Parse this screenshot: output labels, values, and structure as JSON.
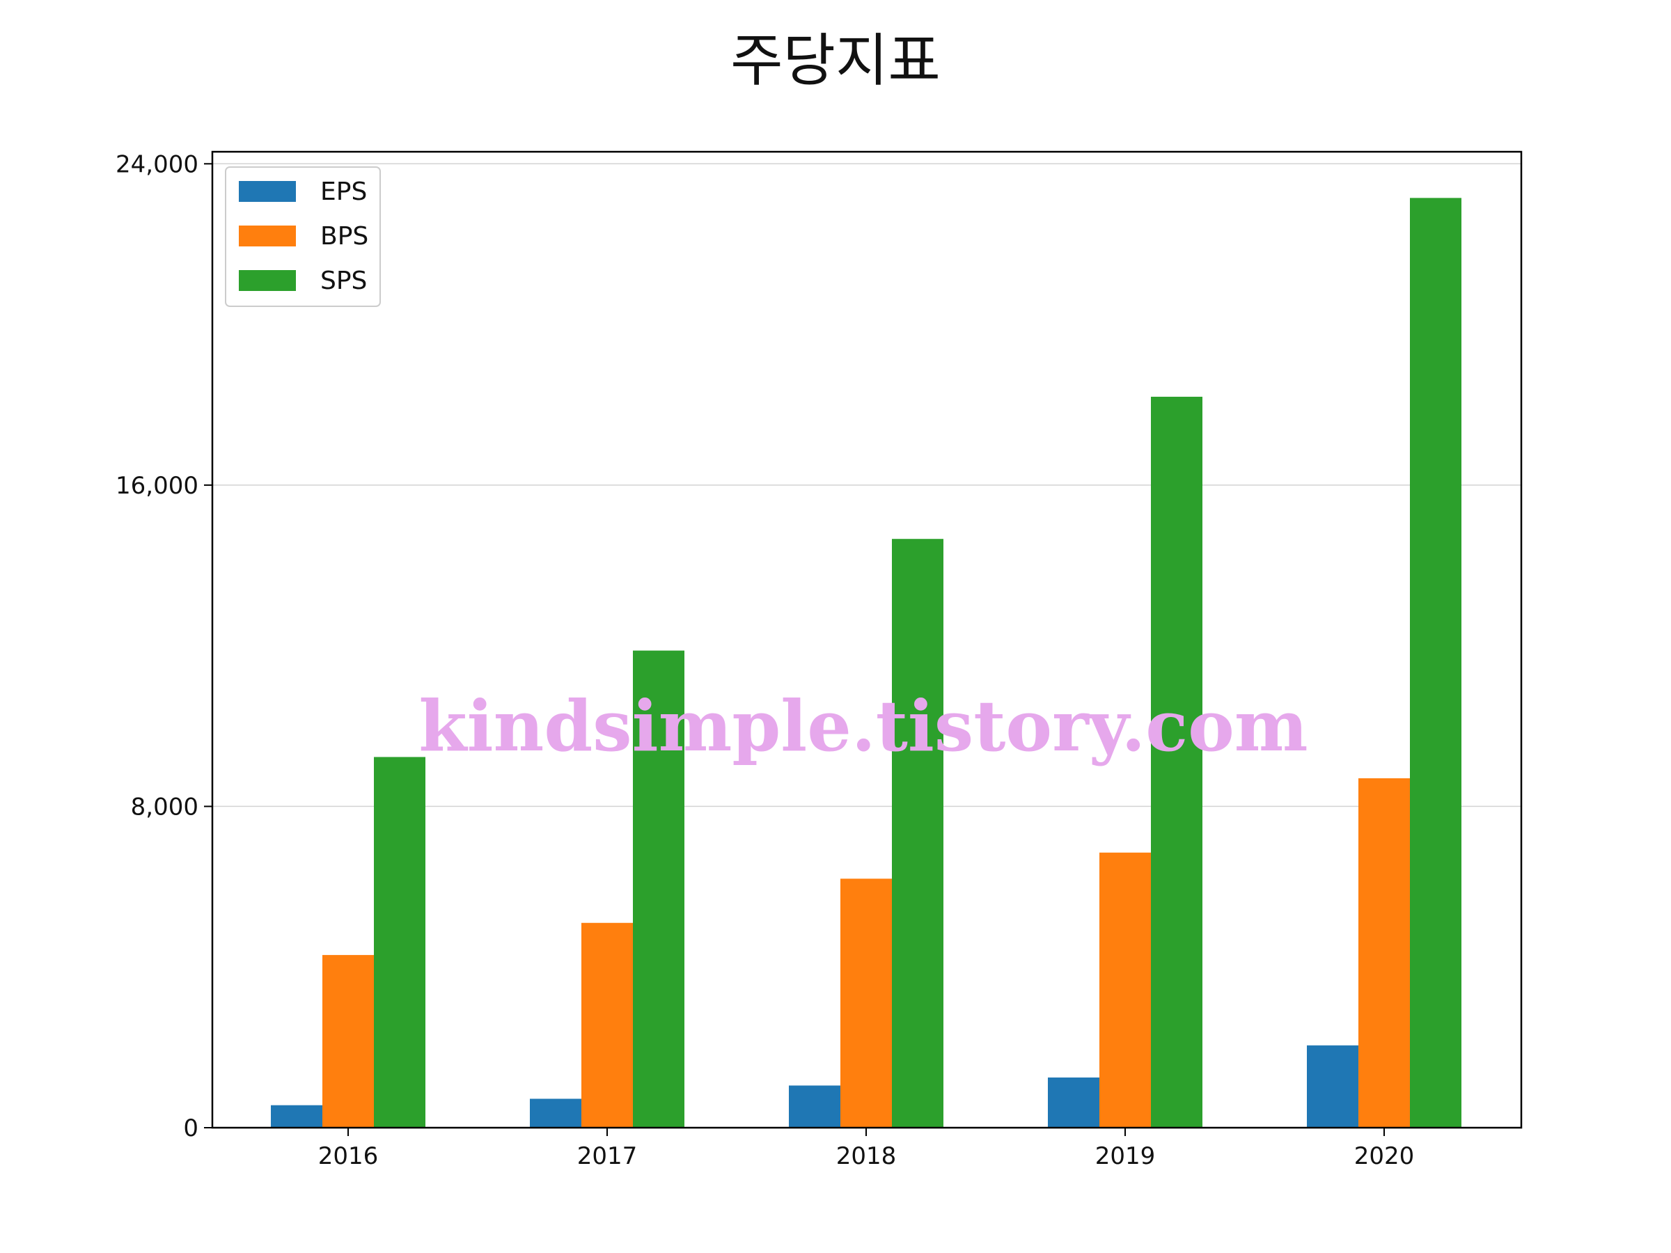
{
  "title": "주당지표",
  "watermark": "kindsimple.tistory.com",
  "colors": {
    "EPS": "#1f77b4",
    "BPS": "#ff7f0e",
    "SPS": "#2ca02c",
    "watermark": "#e6a8ec"
  },
  "chart_data": {
    "type": "bar",
    "title": "주당지표",
    "categories": [
      "2016",
      "2017",
      "2018",
      "2019",
      "2020"
    ],
    "series": [
      {
        "name": "EPS",
        "color": "#1f77b4",
        "values": [
          560,
          720,
          1050,
          1250,
          2050
        ]
      },
      {
        "name": "BPS",
        "color": "#ff7f0e",
        "values": [
          4300,
          5100,
          6200,
          6850,
          8700
        ]
      },
      {
        "name": "SPS",
        "color": "#2ca02c",
        "values": [
          9230,
          11880,
          14660,
          18200,
          23150
        ]
      }
    ],
    "yticks": [
      0,
      8000,
      16000,
      24000
    ],
    "ytick_labels": [
      "0",
      "8,000",
      "16,000",
      "24,000"
    ],
    "ylim": [
      0,
      24300
    ],
    "grid": "y",
    "legend": "top-left",
    "xlabel": "",
    "ylabel": ""
  }
}
